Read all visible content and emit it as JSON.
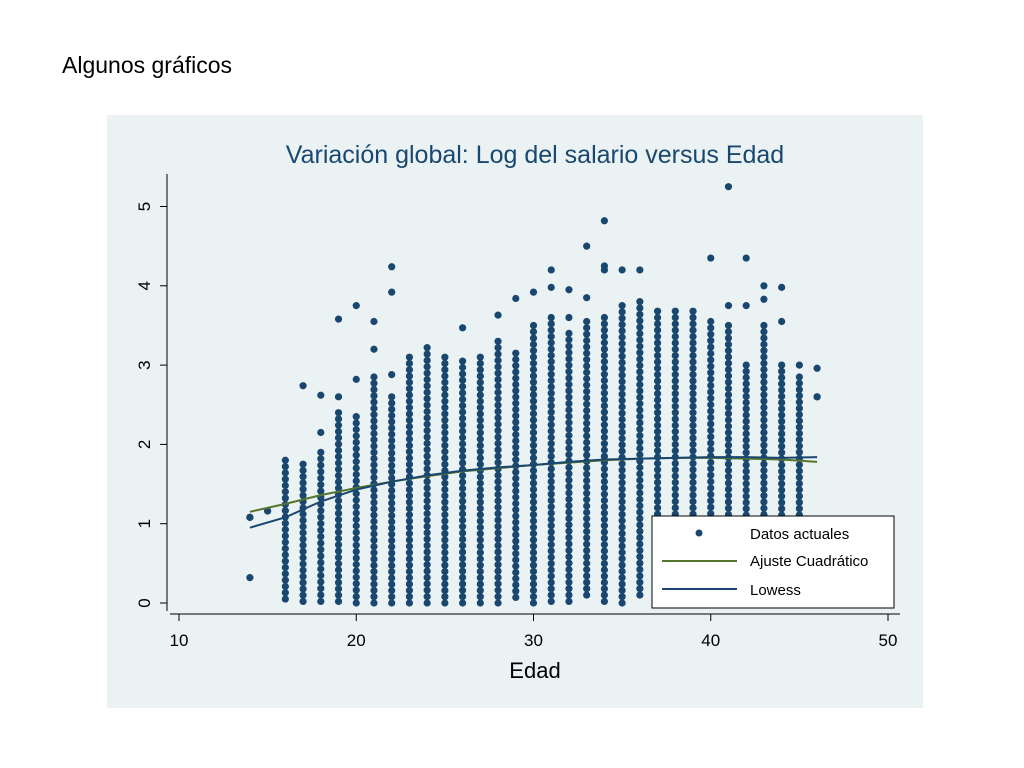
{
  "slide_title": "Algunos gráficos",
  "colors": {
    "panel_bg": "#eaf2f3",
    "plot_bg": "#eaf2f3",
    "marker": "#1a476f",
    "quadratic": "#55752f",
    "lowess": "#1a476f",
    "text": "#1a476f"
  },
  "chart_data": {
    "type": "scatter",
    "title": "Variación global: Log del salario versus Edad",
    "xlabel": "Edad",
    "ylabel": "",
    "xlim": [
      10,
      50
    ],
    "ylim": [
      0,
      5.3
    ],
    "x_ticks": [
      10,
      20,
      30,
      40,
      50
    ],
    "y_ticks": [
      0,
      1,
      2,
      3,
      4,
      5
    ],
    "grid": false,
    "legend_position": "bottom-right",
    "legend": [
      "Datos actuales",
      "Ajuste Cuadrático",
      "Lowess"
    ],
    "columns": [
      {
        "x": 14,
        "min": 1.08,
        "max": 1.08,
        "extra": [
          0.32
        ]
      },
      {
        "x": 15,
        "min": 1.16,
        "max": 1.16,
        "extra": []
      },
      {
        "x": 16,
        "min": 0.05,
        "max": 1.8,
        "extra": []
      },
      {
        "x": 17,
        "min": 0.02,
        "max": 1.75,
        "extra": [
          2.74
        ]
      },
      {
        "x": 18,
        "min": 0.02,
        "max": 1.9,
        "extra": [
          2.15,
          2.62
        ]
      },
      {
        "x": 19,
        "min": 0.02,
        "max": 2.4,
        "extra": [
          2.6,
          3.58
        ]
      },
      {
        "x": 20,
        "min": 0.0,
        "max": 2.35,
        "extra": [
          2.82,
          3.75
        ]
      },
      {
        "x": 21,
        "min": 0.0,
        "max": 2.85,
        "extra": [
          3.2,
          3.55
        ]
      },
      {
        "x": 22,
        "min": 0.0,
        "max": 2.6,
        "extra": [
          2.88,
          3.92,
          4.24
        ]
      },
      {
        "x": 23,
        "min": 0.0,
        "max": 3.1,
        "extra": []
      },
      {
        "x": 24,
        "min": 0.0,
        "max": 3.22,
        "extra": []
      },
      {
        "x": 25,
        "min": 0.0,
        "max": 3.1,
        "extra": []
      },
      {
        "x": 26,
        "min": 0.0,
        "max": 3.05,
        "extra": [
          3.47
        ]
      },
      {
        "x": 27,
        "min": 0.0,
        "max": 3.1,
        "extra": []
      },
      {
        "x": 28,
        "min": 0.0,
        "max": 3.3,
        "extra": [
          3.63
        ]
      },
      {
        "x": 29,
        "min": 0.07,
        "max": 3.15,
        "extra": [
          3.84
        ]
      },
      {
        "x": 30,
        "min": 0.0,
        "max": 3.5,
        "extra": [
          3.92
        ]
      },
      {
        "x": 31,
        "min": 0.02,
        "max": 3.6,
        "extra": [
          4.2,
          3.98
        ]
      },
      {
        "x": 32,
        "min": 0.02,
        "max": 3.4,
        "extra": [
          3.95,
          3.6
        ]
      },
      {
        "x": 33,
        "min": 0.1,
        "max": 3.55,
        "extra": [
          4.5,
          3.85
        ]
      },
      {
        "x": 34,
        "min": 0.02,
        "max": 3.6,
        "extra": [
          4.82,
          4.25,
          4.2
        ]
      },
      {
        "x": 35,
        "min": 0.0,
        "max": 3.75,
        "extra": [
          4.2
        ]
      },
      {
        "x": 36,
        "min": 0.1,
        "max": 3.8,
        "extra": [
          4.2
        ]
      },
      {
        "x": 37,
        "min": 0.4,
        "max": 3.68,
        "extra": []
      },
      {
        "x": 38,
        "min": 0.4,
        "max": 3.68,
        "extra": []
      },
      {
        "x": 39,
        "min": 0.4,
        "max": 3.68,
        "extra": []
      },
      {
        "x": 40,
        "min": 0.4,
        "max": 3.55,
        "extra": [
          4.35
        ]
      },
      {
        "x": 41,
        "min": 0.4,
        "max": 3.5,
        "extra": [
          5.25,
          3.75
        ]
      },
      {
        "x": 42,
        "min": 0.4,
        "max": 3.0,
        "extra": [
          4.35,
          3.75
        ]
      },
      {
        "x": 43,
        "min": 0.4,
        "max": 3.5,
        "extra": [
          4.0,
          3.83
        ]
      },
      {
        "x": 44,
        "min": 0.4,
        "max": 3.0,
        "extra": [
          3.98,
          3.55
        ]
      },
      {
        "x": 45,
        "min": 0.4,
        "max": 2.85,
        "extra": [
          3.0
        ]
      },
      {
        "x": 46,
        "min": 2.6,
        "max": 2.6,
        "extra": [
          2.96
        ]
      }
    ],
    "series": [
      {
        "name": "Ajuste Cuadrático",
        "x": [
          14,
          16,
          18,
          20,
          22,
          24,
          26,
          28,
          30,
          32,
          34,
          36,
          38,
          40,
          42,
          44,
          46
        ],
        "values": [
          1.15,
          1.25,
          1.36,
          1.45,
          1.53,
          1.6,
          1.66,
          1.7,
          1.74,
          1.77,
          1.8,
          1.82,
          1.83,
          1.83,
          1.82,
          1.81,
          1.78
        ]
      },
      {
        "name": "Lowess",
        "x": [
          14,
          16,
          18,
          20,
          22,
          24,
          26,
          28,
          30,
          32,
          34,
          36,
          38,
          40,
          42,
          44,
          46
        ],
        "values": [
          0.95,
          1.08,
          1.28,
          1.43,
          1.53,
          1.61,
          1.67,
          1.71,
          1.74,
          1.78,
          1.81,
          1.82,
          1.83,
          1.84,
          1.84,
          1.83,
          1.84
        ]
      }
    ]
  }
}
